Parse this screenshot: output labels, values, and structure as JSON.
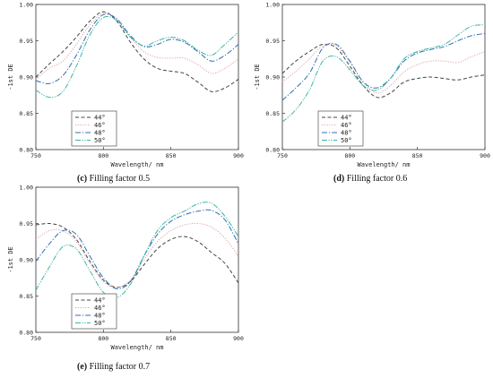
{
  "styles": [
    {
      "name": "44°",
      "color": "#444444",
      "dash": "4,2.5"
    },
    {
      "name": "46°",
      "color": "#e2a0a0",
      "dash": "1.2,1.6"
    },
    {
      "name": "48°",
      "color": "#2f6db5",
      "dash": "6,2,1.2,2"
    },
    {
      "name": "50°",
      "color": "#39b6a5",
      "dash": "6,1.5,1.2,1.5,1.2,1.5"
    }
  ],
  "chart_data": [
    {
      "type": "line",
      "panel_letter": "(c)",
      "caption": "Filling factor 0.5",
      "xlabel": "Wavelength/ nm",
      "ylabel": "-1st DE",
      "xlim": [
        750,
        900
      ],
      "ylim": [
        0.8,
        1.0
      ],
      "xticks": [
        750,
        800,
        850,
        900
      ],
      "yticks": [
        0.8,
        0.85,
        0.9,
        0.95,
        1.0
      ],
      "legend": [
        "44°",
        "46°",
        "48°",
        "50°"
      ],
      "series": [
        {
          "name": "44°",
          "x": [
            750,
            760,
            770,
            780,
            790,
            800,
            810,
            820,
            830,
            840,
            850,
            860,
            870,
            880,
            890,
            900
          ],
          "y": [
            0.9,
            0.918,
            0.935,
            0.955,
            0.977,
            0.99,
            0.977,
            0.948,
            0.925,
            0.912,
            0.908,
            0.905,
            0.893,
            0.88,
            0.885,
            0.897
          ]
        },
        {
          "name": "46°",
          "x": [
            750,
            760,
            770,
            780,
            790,
            800,
            810,
            820,
            830,
            840,
            850,
            860,
            870,
            880,
            890,
            900
          ],
          "y": [
            0.897,
            0.912,
            0.922,
            0.945,
            0.972,
            0.988,
            0.98,
            0.955,
            0.935,
            0.927,
            0.926,
            0.926,
            0.917,
            0.905,
            0.912,
            0.925
          ]
        },
        {
          "name": "48°",
          "x": [
            750,
            760,
            770,
            780,
            790,
            800,
            810,
            820,
            830,
            840,
            850,
            860,
            870,
            880,
            890,
            900
          ],
          "y": [
            0.895,
            0.891,
            0.902,
            0.93,
            0.965,
            0.986,
            0.98,
            0.957,
            0.942,
            0.945,
            0.952,
            0.948,
            0.935,
            0.922,
            0.93,
            0.945
          ]
        },
        {
          "name": "50°",
          "x": [
            750,
            760,
            770,
            780,
            790,
            800,
            810,
            820,
            830,
            840,
            850,
            860,
            870,
            880,
            890,
            900
          ],
          "y": [
            0.882,
            0.872,
            0.88,
            0.915,
            0.958,
            0.982,
            0.978,
            0.955,
            0.943,
            0.95,
            0.955,
            0.95,
            0.937,
            0.93,
            0.945,
            0.962
          ]
        }
      ]
    },
    {
      "type": "line",
      "panel_letter": "(d)",
      "caption": "Filling factor 0.6",
      "xlabel": "Wavelength/ nm",
      "ylabel": "-1st DE",
      "xlim": [
        750,
        900
      ],
      "ylim": [
        0.8,
        1.0
      ],
      "xticks": [
        750,
        800,
        850,
        900
      ],
      "yticks": [
        0.8,
        0.85,
        0.9,
        0.95,
        1.0
      ],
      "legend": [
        "44°",
        "46°",
        "48°",
        "50°"
      ],
      "series": [
        {
          "name": "44°",
          "x": [
            750,
            760,
            770,
            780,
            790,
            800,
            810,
            820,
            830,
            840,
            850,
            860,
            870,
            880,
            890,
            900
          ],
          "y": [
            0.905,
            0.922,
            0.935,
            0.945,
            0.94,
            0.915,
            0.888,
            0.872,
            0.878,
            0.893,
            0.898,
            0.9,
            0.898,
            0.896,
            0.9,
            0.903
          ]
        },
        {
          "name": "46°",
          "x": [
            750,
            760,
            770,
            780,
            790,
            800,
            810,
            820,
            830,
            840,
            850,
            860,
            870,
            880,
            890,
            900
          ],
          "y": [
            0.893,
            0.908,
            0.925,
            0.943,
            0.943,
            0.92,
            0.893,
            0.878,
            0.888,
            0.907,
            0.917,
            0.922,
            0.922,
            0.92,
            0.928,
            0.935
          ]
        },
        {
          "name": "48°",
          "x": [
            750,
            760,
            770,
            780,
            790,
            800,
            810,
            820,
            830,
            840,
            850,
            860,
            870,
            880,
            890,
            900
          ],
          "y": [
            0.868,
            0.885,
            0.905,
            0.94,
            0.945,
            0.922,
            0.893,
            0.885,
            0.898,
            0.922,
            0.933,
            0.938,
            0.942,
            0.95,
            0.957,
            0.96
          ]
        },
        {
          "name": "50°",
          "x": [
            750,
            760,
            770,
            780,
            790,
            800,
            810,
            820,
            830,
            840,
            850,
            860,
            870,
            880,
            890,
            900
          ],
          "y": [
            0.838,
            0.855,
            0.882,
            0.922,
            0.928,
            0.91,
            0.888,
            0.882,
            0.898,
            0.925,
            0.935,
            0.94,
            0.945,
            0.958,
            0.97,
            0.972
          ]
        }
      ]
    },
    {
      "type": "line",
      "panel_letter": "(e)",
      "caption": "Filling factor 0.7",
      "xlabel": "Wavelength/ nm",
      "ylabel": "-1st DE",
      "xlim": [
        750,
        900
      ],
      "ylim": [
        0.8,
        1.0
      ],
      "xticks": [
        750,
        800,
        850,
        900
      ],
      "yticks": [
        0.8,
        0.85,
        0.9,
        0.95,
        1.0
      ],
      "legend": [
        "44°",
        "46°",
        "48°",
        "50°"
      ],
      "series": [
        {
          "name": "44°",
          "x": [
            750,
            760,
            770,
            780,
            790,
            800,
            810,
            820,
            830,
            840,
            850,
            860,
            870,
            880,
            890,
            900
          ],
          "y": [
            0.948,
            0.95,
            0.945,
            0.928,
            0.898,
            0.872,
            0.862,
            0.87,
            0.893,
            0.915,
            0.928,
            0.932,
            0.925,
            0.91,
            0.895,
            0.868
          ]
        },
        {
          "name": "46°",
          "x": [
            750,
            760,
            770,
            780,
            790,
            800,
            810,
            820,
            830,
            840,
            850,
            860,
            870,
            880,
            890,
            900
          ],
          "y": [
            0.928,
            0.94,
            0.94,
            0.925,
            0.895,
            0.87,
            0.862,
            0.872,
            0.9,
            0.925,
            0.94,
            0.948,
            0.95,
            0.945,
            0.93,
            0.905
          ]
        },
        {
          "name": "48°",
          "x": [
            750,
            760,
            770,
            780,
            790,
            800,
            810,
            820,
            830,
            840,
            850,
            860,
            870,
            880,
            890,
            900
          ],
          "y": [
            0.898,
            0.922,
            0.94,
            0.935,
            0.905,
            0.875,
            0.86,
            0.87,
            0.905,
            0.935,
            0.953,
            0.962,
            0.967,
            0.968,
            0.955,
            0.922
          ]
        },
        {
          "name": "50°",
          "x": [
            750,
            760,
            770,
            780,
            790,
            800,
            810,
            820,
            830,
            840,
            850,
            860,
            870,
            880,
            890,
            900
          ],
          "y": [
            0.858,
            0.89,
            0.918,
            0.915,
            0.885,
            0.855,
            0.848,
            0.866,
            0.905,
            0.94,
            0.958,
            0.967,
            0.977,
            0.978,
            0.96,
            0.932
          ]
        }
      ]
    }
  ]
}
